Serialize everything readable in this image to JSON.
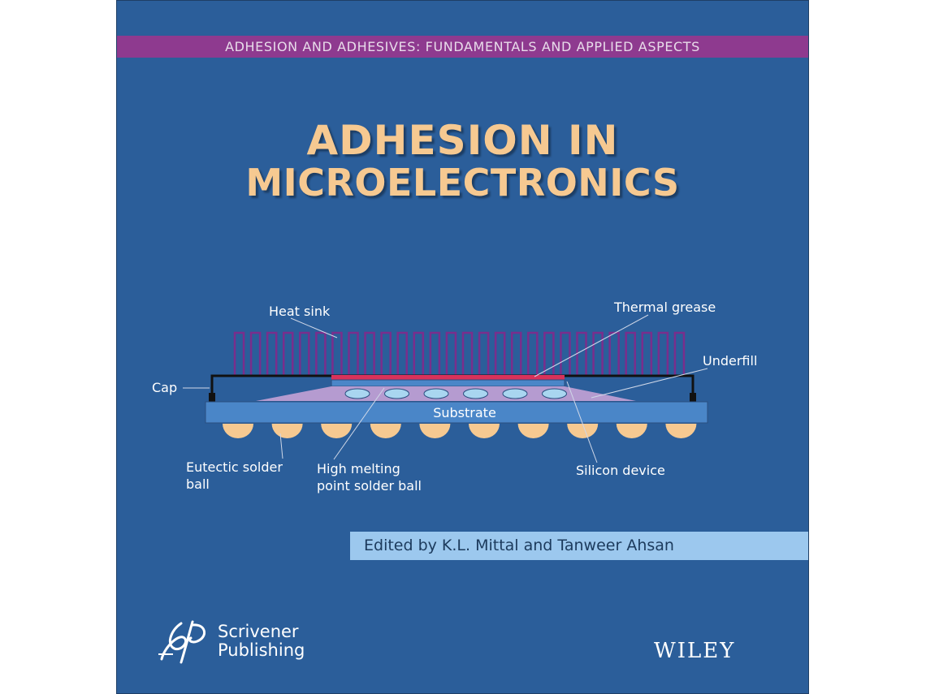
{
  "series": "ADHESION AND ADHESIVES: FUNDAMENTALS AND APPLIED ASPECTS",
  "title": {
    "line1": "ADHESION IN",
    "line2": "MICROELECTRONICS"
  },
  "diagram": {
    "labels": {
      "heat_sink": "Heat sink",
      "thermal_grease": "Thermal grease",
      "underfill": "Underfill",
      "cap": "Cap",
      "substrate": "Substrate",
      "eutectic_1": "Eutectic solder",
      "eutectic_2": "ball",
      "high_melting_1": "High melting",
      "high_melting_2": "point solder ball",
      "silicon_device": "Silicon device"
    },
    "colors": {
      "heat_sink": "#7a2e8c",
      "cap": "#111111",
      "thermal_grease": "#d8325a",
      "substrate": "#4a86c8",
      "underfill": "#b59bd0",
      "eutectic_ball": "#f6c991",
      "hmp_ball": "#a9d6f0"
    }
  },
  "editors": "Edited by K.L. Mittal and Tanweer Ahsan",
  "publisher": {
    "line1": "Scrivener",
    "line2": "Publishing",
    "logo_icon": "scrivener-logo-icon"
  },
  "imprint": "WILEY"
}
